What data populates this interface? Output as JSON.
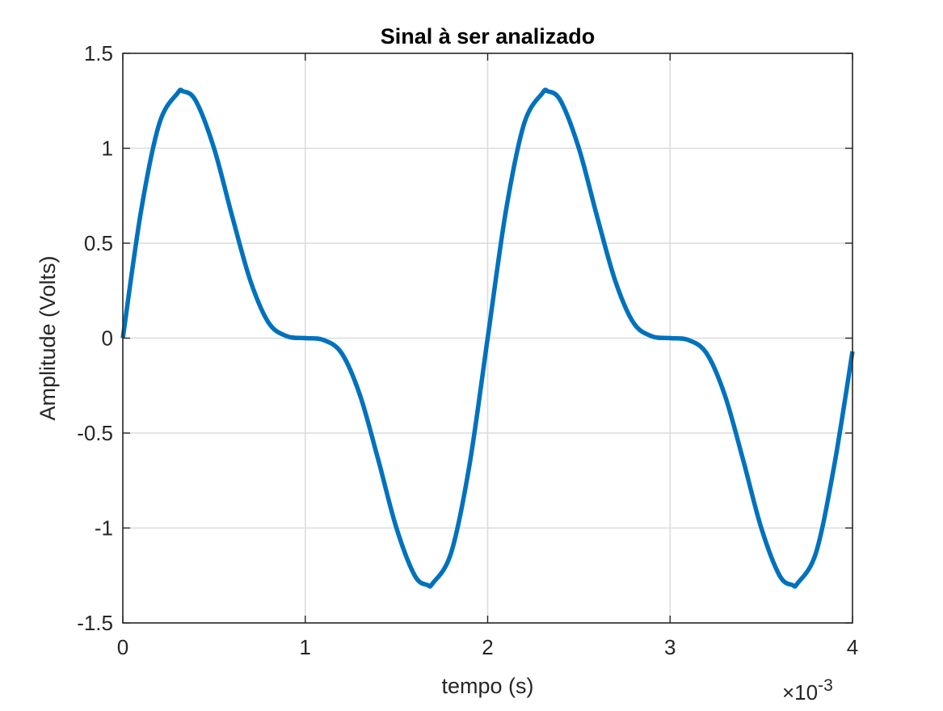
{
  "chart_data": {
    "type": "line",
    "title": "Sinal à ser analizado",
    "xlabel": "tempo (s)",
    "ylabel": "Amplitude (Volts)",
    "x_exponent_base": "×10",
    "x_exponent_power": "-3",
    "xlim": [
      0,
      0.004
    ],
    "ylim": [
      -1.5,
      1.5
    ],
    "grid": true,
    "x_ticks": [
      0,
      0.001,
      0.002,
      0.003,
      0.004
    ],
    "x_tick_labels": [
      "0",
      "1",
      "2",
      "3",
      "4"
    ],
    "y_ticks": [
      -1.5,
      -1,
      -0.5,
      0,
      0.5,
      1,
      1.5
    ],
    "y_tick_labels": [
      "-1.5",
      "-1",
      "-0.5",
      "0",
      "0.5",
      "1",
      "1.5"
    ],
    "line_color": "#0072BD",
    "series": [
      {
        "x": [
          0,
          0.0001,
          0.0002,
          0.0003,
          0.00033,
          0.0004,
          0.0005,
          0.0006,
          0.0007,
          0.0008,
          0.0009,
          0.001,
          0.0011,
          0.0012,
          0.0013,
          0.0014,
          0.0015,
          0.0016,
          0.00167,
          0.0017,
          0.0018,
          0.0019,
          0.002,
          0.0021,
          0.0022,
          0.0023,
          0.00233,
          0.0024,
          0.0025,
          0.0026,
          0.0027,
          0.0028,
          0.0029,
          0.003,
          0.0031,
          0.0032,
          0.0033,
          0.0034,
          0.0035,
          0.0036,
          0.00367,
          0.0037,
          0.0038,
          0.0039,
          0.004
        ],
        "values": [
          0,
          0.67,
          1.13,
          1.29,
          1.3,
          1.25,
          1.0,
          0.64,
          0.3,
          0.08,
          0.01,
          0,
          -0.01,
          -0.08,
          -0.3,
          -0.64,
          -1.0,
          -1.25,
          -1.3,
          -1.29,
          -1.13,
          -0.67,
          0,
          0.67,
          1.13,
          1.29,
          1.3,
          1.25,
          1.0,
          0.64,
          0.3,
          0.08,
          0.01,
          0,
          -0.01,
          -0.08,
          -0.3,
          -0.64,
          -1.0,
          -1.25,
          -1.3,
          -1.29,
          -1.13,
          -0.67,
          -0.07
        ]
      }
    ]
  }
}
